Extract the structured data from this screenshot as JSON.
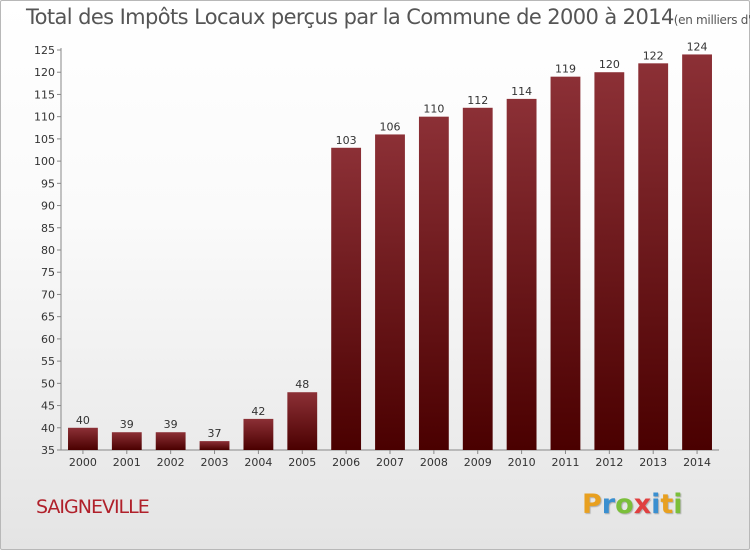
{
  "title": {
    "main": "Total des Impôts Locaux perçus par la Commune de 2000 à 2014",
    "unit": "(en milliers d'€)"
  },
  "commune": "SAIGNEVILLE",
  "logo": {
    "letters": [
      "P",
      "r",
      "o",
      "x",
      "i",
      "t",
      "i"
    ],
    "colors": [
      "#e8a020",
      "#3a8fd0",
      "#7bbf3a",
      "#e04040",
      "#3a8fd0",
      "#e8a020",
      "#7bbf3a"
    ]
  },
  "colors": {
    "bar_top": "#8c3036",
    "bar_bottom": "#4a0000"
  },
  "chart_data": {
    "type": "bar",
    "categories": [
      "2000",
      "2001",
      "2002",
      "2003",
      "2004",
      "2005",
      "2006",
      "2007",
      "2008",
      "2009",
      "2010",
      "2011",
      "2012",
      "2013",
      "2014"
    ],
    "values": [
      40,
      39,
      39,
      37,
      42,
      48,
      103,
      106,
      110,
      112,
      114,
      119,
      120,
      122,
      124
    ],
    "ylim": [
      35,
      125
    ],
    "yticks": [
      35,
      40,
      45,
      50,
      55,
      60,
      65,
      70,
      75,
      80,
      85,
      90,
      95,
      100,
      105,
      110,
      115,
      120,
      125
    ],
    "grid": false,
    "title": "Total des Impôts Locaux perçus par la Commune de 2000 à 2014",
    "xlabel": "",
    "ylabel": ""
  }
}
